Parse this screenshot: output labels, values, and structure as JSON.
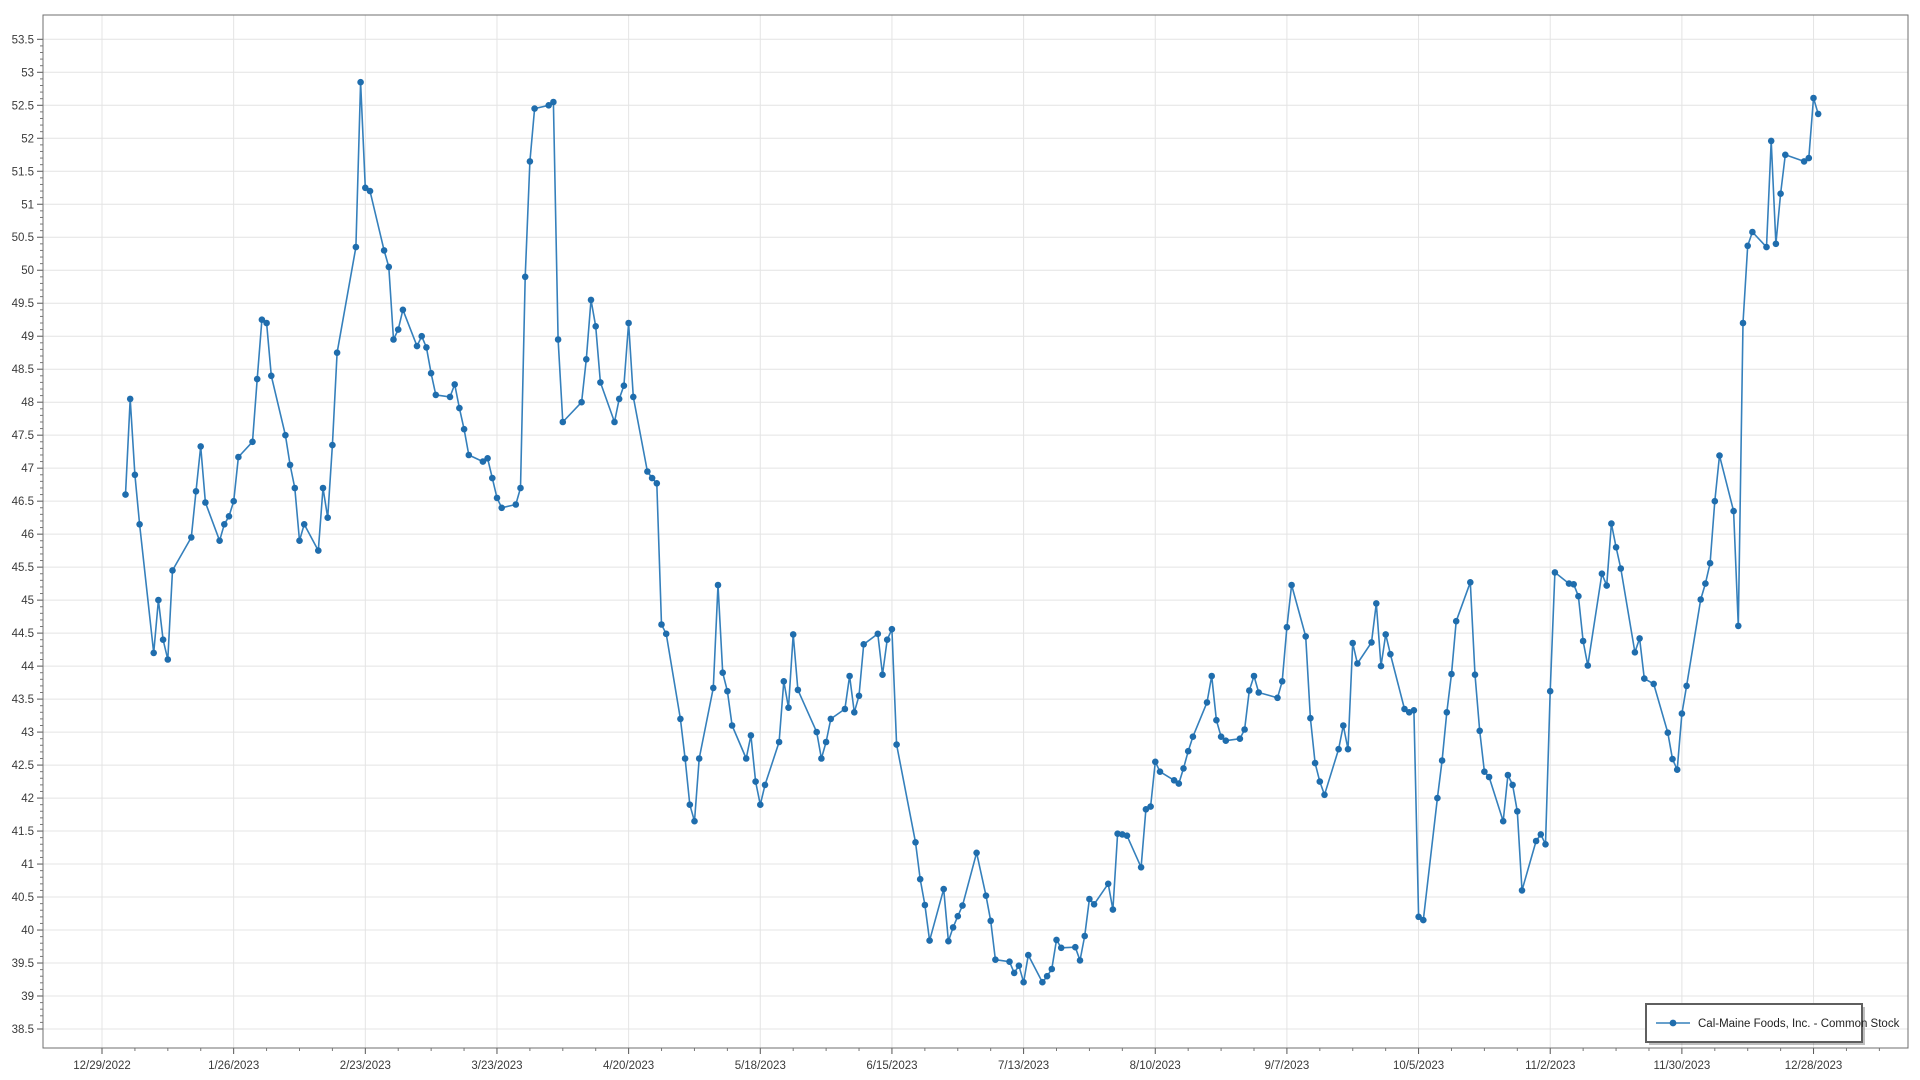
{
  "legend": {
    "label": "Cal-Maine Foods, Inc. - Common Stock"
  },
  "chart_data": {
    "type": "line",
    "title": "",
    "series_name": "Cal-Maine Foods, Inc. - Common Stock",
    "marker": "circle",
    "line_color": "#3580bc",
    "marker_color": "#1f6dad",
    "grid": true,
    "grid_color": "#e4e4e4",
    "legend_position": "bottom-right",
    "x_axis": {
      "type": "date",
      "first_tick": "2022-12-29",
      "tick_interval_days": 28,
      "tick_labels": [
        "12/29/2022",
        "1/26/2023",
        "2/23/2023",
        "3/23/2023",
        "4/20/2023",
        "5/18/2023",
        "6/15/2023",
        "7/13/2023",
        "8/10/2023",
        "9/7/2023",
        "10/5/2023",
        "11/2/2023",
        "11/30/2023",
        "12/28/2023"
      ]
    },
    "y_axis": {
      "tick_min": 38.5,
      "tick_max": 53.5,
      "tick_step": 0.5,
      "minor_step": 0.1,
      "ylim": [
        38.2,
        53.87
      ]
    },
    "series_start_date": "2023-01-03",
    "series_end_date": "2023-12-29",
    "values": [
      46.6,
      48.05,
      46.9,
      46.15,
      44.2,
      45.0,
      44.4,
      44.1,
      45.45,
      45.95,
      46.65,
      47.33,
      46.48,
      45.9,
      46.15,
      46.27,
      46.5,
      47.17,
      47.4,
      48.35,
      49.25,
      49.2,
      48.4,
      47.5,
      47.05,
      46.7,
      45.9,
      46.15,
      45.75,
      46.7,
      46.25,
      47.35,
      48.75,
      50.35,
      52.85,
      51.25,
      51.2,
      50.3,
      50.05,
      48.95,
      49.1,
      49.4,
      48.85,
      49.0,
      48.83,
      48.44,
      48.11,
      48.08,
      48.27,
      47.91,
      47.59,
      47.2,
      47.1,
      47.15,
      46.85,
      46.55,
      46.4,
      46.45,
      46.7,
      49.9,
      51.65,
      52.45,
      52.5,
      52.55,
      48.95,
      47.7,
      48.0,
      48.65,
      49.55,
      49.15,
      48.3,
      47.7,
      48.05,
      48.25,
      49.2,
      48.08,
      46.95,
      46.85,
      46.77,
      44.63,
      44.49,
      43.2,
      42.6,
      41.9,
      41.65,
      42.6,
      43.67,
      45.23,
      43.9,
      43.62,
      43.1,
      42.6,
      42.95,
      42.25,
      41.9,
      42.2,
      42.85,
      43.77,
      43.37,
      44.48,
      43.64,
      43.0,
      42.6,
      42.85,
      43.2,
      43.35,
      43.85,
      43.3,
      43.55,
      44.33,
      44.49,
      43.87,
      44.4,
      44.56,
      42.81,
      41.33,
      40.77,
      40.38,
      39.84,
      40.62,
      39.83,
      40.04,
      40.21,
      40.37,
      41.17,
      40.52,
      40.14,
      39.55,
      39.52,
      39.35,
      39.46,
      39.21,
      39.62,
      39.21,
      39.3,
      39.41,
      39.85,
      39.73,
      39.74,
      39.54,
      39.91,
      40.47,
      40.39,
      40.7,
      40.31,
      41.46,
      41.45,
      41.43,
      40.95,
      41.83,
      41.87,
      42.55,
      42.4,
      42.27,
      42.22,
      42.45,
      42.71,
      42.93,
      43.45,
      43.85,
      43.18,
      42.93,
      42.87,
      42.9,
      43.04,
      43.63,
      43.85,
      43.6,
      43.52,
      43.77,
      44.59,
      45.23,
      44.45,
      43.21,
      42.53,
      42.25,
      42.05,
      42.74,
      43.1,
      42.74,
      44.35,
      44.04,
      44.36,
      44.95,
      44.0,
      44.48,
      44.18,
      43.35,
      43.3,
      43.33,
      40.2,
      40.15,
      42.0,
      42.57,
      43.3,
      43.88,
      44.68,
      45.27,
      43.87,
      43.02,
      42.4,
      42.32,
      41.65,
      42.35,
      42.2,
      41.8,
      40.6,
      41.35,
      41.45,
      41.3,
      43.62,
      45.42,
      45.25,
      45.24,
      45.06,
      44.38,
      44.01,
      45.4,
      45.22,
      46.16,
      45.8,
      45.48,
      44.21,
      44.42,
      43.81,
      43.73,
      42.99,
      42.59,
      42.43,
      43.28,
      43.7,
      45.01,
      45.25,
      45.56,
      46.5,
      47.19,
      46.35,
      44.61,
      49.2,
      50.37,
      50.58,
      50.35,
      51.96,
      50.4,
      51.16,
      51.75,
      51.65,
      51.7,
      52.61,
      52.37
    ]
  }
}
